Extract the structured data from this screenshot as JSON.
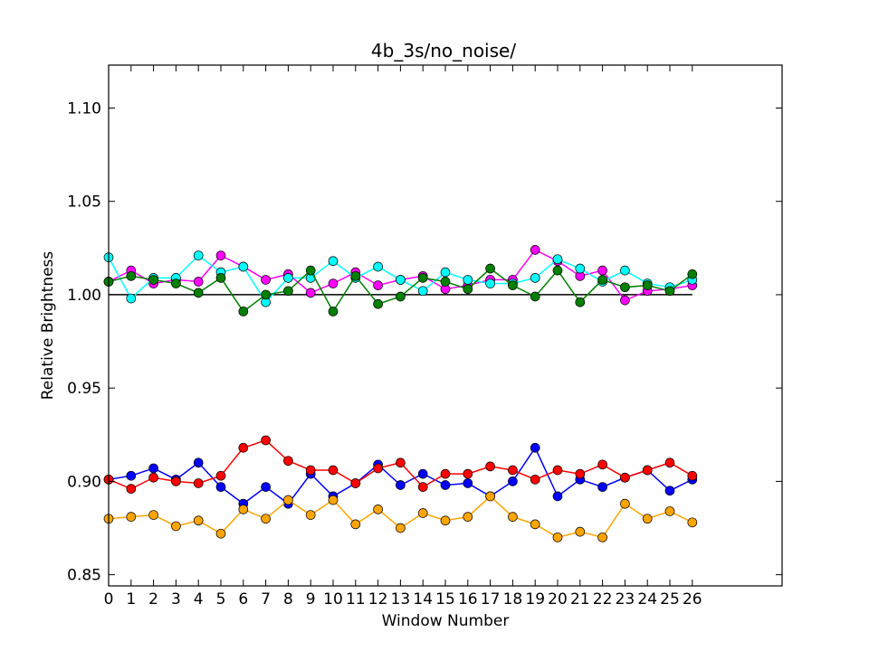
{
  "chart_data": {
    "type": "line",
    "title": "4b_3s/no_noise/",
    "xlabel": "Window Number",
    "ylabel": "Relative Brightness",
    "xlim": [
      0,
      30
    ],
    "ylim": [
      0.844,
      1.123
    ],
    "x": [
      0,
      1,
      2,
      3,
      4,
      5,
      6,
      7,
      8,
      9,
      10,
      11,
      12,
      13,
      14,
      15,
      16,
      17,
      18,
      19,
      20,
      21,
      22,
      23,
      24,
      25,
      26
    ],
    "x_tick_labels": [
      "0",
      "1",
      "2",
      "3",
      "4",
      "5",
      "6",
      "7",
      "8",
      "9",
      "10",
      "11",
      "12",
      "13",
      "14",
      "15",
      "16",
      "17",
      "18",
      "19",
      "20",
      "21",
      "22",
      "23",
      "24",
      "25",
      "26"
    ],
    "y_ticks": [
      0.85,
      0.9,
      0.95,
      1.0,
      1.05,
      1.1
    ],
    "y_tick_labels": [
      "0.85",
      "0.90",
      "0.95",
      "1.00",
      "1.05",
      "1.10"
    ],
    "grid": false,
    "reference_line": {
      "y": 1.0,
      "x_range": [
        0,
        26
      ],
      "color": "#000000"
    },
    "series": [
      {
        "color": "#ff00ff",
        "values": [
          1.007,
          1.013,
          1.006,
          1.008,
          1.007,
          1.021,
          1.015,
          1.008,
          1.011,
          1.001,
          1.006,
          1.012,
          1.005,
          1.008,
          1.01,
          1.003,
          1.005,
          1.008,
          1.008,
          1.024,
          1.018,
          1.01,
          1.013,
          0.997,
          1.002,
          1.003,
          1.005
        ]
      },
      {
        "color": "#00ffff",
        "values": [
          1.02,
          0.998,
          1.009,
          1.009,
          1.021,
          1.012,
          1.015,
          0.996,
          1.009,
          1.009,
          1.018,
          1.009,
          1.015,
          1.008,
          1.002,
          1.012,
          1.008,
          1.006,
          1.006,
          1.009,
          1.019,
          1.014,
          1.007,
          1.013,
          1.006,
          1.004,
          1.008
        ]
      },
      {
        "color": "#008000",
        "values": [
          1.007,
          1.01,
          1.008,
          1.006,
          1.001,
          1.009,
          0.991,
          1.0,
          1.002,
          1.013,
          0.991,
          1.01,
          0.995,
          0.999,
          1.009,
          1.007,
          1.003,
          1.014,
          1.005,
          0.999,
          1.013,
          0.996,
          1.008,
          1.004,
          1.005,
          1.002,
          1.011
        ]
      },
      {
        "color": "#0000ff",
        "values": [
          0.901,
          0.903,
          0.907,
          0.901,
          0.91,
          0.897,
          0.888,
          0.897,
          0.888,
          0.904,
          0.892,
          0.899,
          0.909,
          0.898,
          0.904,
          0.898,
          0.899,
          0.892,
          0.9,
          0.918,
          0.892,
          0.901,
          0.897,
          0.902,
          0.906,
          0.895,
          0.901
        ]
      },
      {
        "color": "#ff0000",
        "values": [
          0.901,
          0.896,
          0.902,
          0.9,
          0.899,
          0.903,
          0.918,
          0.922,
          0.911,
          0.906,
          0.906,
          0.899,
          0.907,
          0.91,
          0.897,
          0.904,
          0.904,
          0.908,
          0.906,
          0.901,
          0.906,
          0.904,
          0.909,
          0.902,
          0.906,
          0.91,
          0.903
        ]
      },
      {
        "color": "#ffa500",
        "values": [
          0.88,
          0.881,
          0.882,
          0.876,
          0.879,
          0.872,
          0.885,
          0.88,
          0.89,
          0.882,
          0.89,
          0.877,
          0.885,
          0.875,
          0.883,
          0.879,
          0.881,
          0.892,
          0.881,
          0.877,
          0.87,
          0.873,
          0.87,
          0.888,
          0.88,
          0.884,
          0.878
        ]
      }
    ]
  }
}
